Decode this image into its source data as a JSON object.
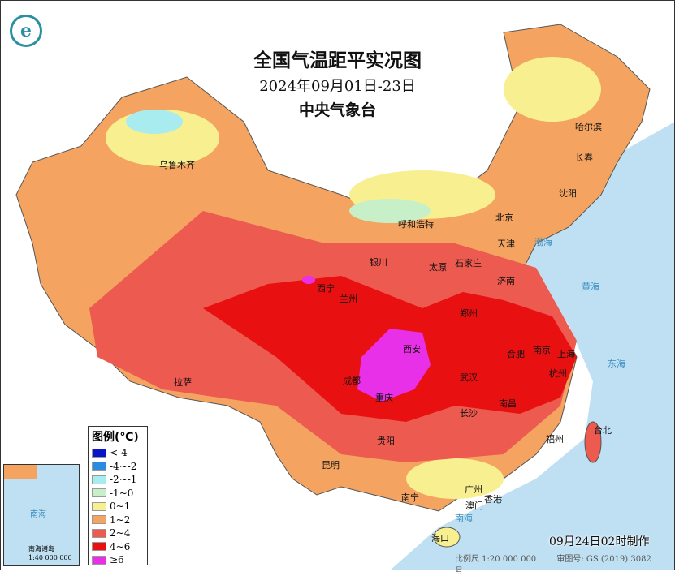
{
  "title": "全国气温距平实况图",
  "date_range": "2024年09月01日-23日",
  "issuer": "中央气象台",
  "legend": {
    "title": "图例(℃)",
    "items": [
      {
        "label": "<-4",
        "color": "#0a14c8"
      },
      {
        "label": "-4~-2",
        "color": "#2a8ce0"
      },
      {
        "label": "-2~-1",
        "color": "#a8ecf0"
      },
      {
        "label": "-1~0",
        "color": "#c8f0c8"
      },
      {
        "label": "0~1",
        "color": "#f8f090"
      },
      {
        "label": "1~2",
        "color": "#f4a460"
      },
      {
        "label": "2~4",
        "color": "#ec5a50"
      },
      {
        "label": "4~6",
        "color": "#e81010"
      },
      {
        "label": "≥6",
        "color": "#e830e8"
      }
    ]
  },
  "cities": [
    "乌鲁木齐",
    "哈尔滨",
    "长春",
    "沈阳",
    "呼和浩特",
    "北京",
    "天津",
    "石家庄",
    "太原",
    "银川",
    "济南",
    "西宁",
    "兰州",
    "郑州",
    "西安",
    "合肥",
    "南京",
    "上海",
    "杭州",
    "成都",
    "武汉",
    "重庆",
    "长沙",
    "南昌",
    "拉萨",
    "贵阳",
    "福州",
    "台北",
    "昆明",
    "南宁",
    "广州",
    "香港",
    "澳门",
    "海口"
  ],
  "seas": [
    "渤海",
    "黄海",
    "东海",
    "南海"
  ],
  "inset": {
    "sea": "南海",
    "label": "南海诸岛",
    "scale": "1:40 000 000"
  },
  "made_time": "09月24日02时制作",
  "scale": "比例尺 1:20 000 000",
  "map_number": "审图号: GS (2019) 3082号"
}
